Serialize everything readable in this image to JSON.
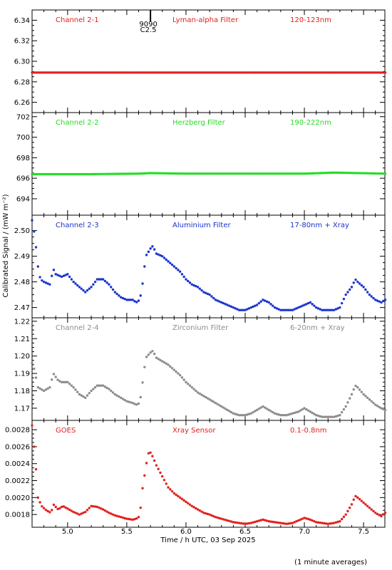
{
  "chart_data": {
    "type": "scatter",
    "title": "",
    "xlabel": "Time / h UTC, 03 Sep 2025",
    "ylabel": "Calibrated Signal / (mW m⁻²)",
    "footnote": "(1 minute averages)",
    "xlim": [
      4.7,
      7.68
    ],
    "x_ticks": [
      "5.0",
      "5.5",
      "6.0",
      "6.5",
      "7.0",
      "7.5"
    ],
    "x_tick_values": [
      5.0,
      5.5,
      6.0,
      6.5,
      7.0,
      7.5
    ],
    "event_marker": {
      "x": 5.7,
      "label_top": "9090",
      "label_bottom": "C2.5"
    },
    "panels": [
      {
        "name": "Channel 2-1",
        "filter": "Lyman-alpha Filter",
        "band": "120-123nm",
        "color": "#e0201e",
        "ylim": [
          6.25,
          6.35
        ],
        "y_ticks": [
          "6.26",
          "6.28",
          "6.30",
          "6.32",
          "6.34"
        ],
        "y_tick_values": [
          6.26,
          6.28,
          6.3,
          6.32,
          6.34
        ],
        "points": [
          [
            4.7,
            6.289
          ],
          [
            5.0,
            6.289
          ],
          [
            5.5,
            6.289
          ],
          [
            6.0,
            6.289
          ],
          [
            6.5,
            6.289
          ],
          [
            7.0,
            6.289
          ],
          [
            7.68,
            6.289
          ]
        ]
      },
      {
        "name": "Channel 2-2",
        "filter": "Herzberg Filter",
        "band": "190-222nm",
        "color": "#22dd22",
        "ylim": [
          692.4,
          702.4
        ],
        "y_ticks": [
          "694",
          "696",
          "698",
          "700",
          "702"
        ],
        "y_tick_values": [
          694,
          696,
          698,
          700,
          702
        ],
        "points": [
          [
            4.7,
            696.4
          ],
          [
            5.2,
            696.4
          ],
          [
            5.6,
            696.45
          ],
          [
            5.7,
            696.5
          ],
          [
            6.0,
            696.45
          ],
          [
            6.5,
            696.45
          ],
          [
            7.0,
            696.45
          ],
          [
            7.25,
            696.55
          ],
          [
            7.68,
            696.45
          ]
        ]
      },
      {
        "name": "Channel 2-3",
        "filter": "Aluminium Filter",
        "band": "17-80nm + Xray",
        "color": "#1a33cc",
        "ylim": [
          2.466,
          2.506
        ],
        "y_ticks": [
          "2.47",
          "2.48",
          "2.49",
          "2.50"
        ],
        "y_tick_values": [
          2.47,
          2.48,
          2.49,
          2.5
        ],
        "points": [
          [
            4.7,
            2.504
          ],
          [
            4.71,
            2.502
          ],
          [
            4.73,
            2.495
          ],
          [
            4.75,
            2.486
          ],
          [
            4.77,
            2.481
          ],
          [
            4.8,
            2.48
          ],
          [
            4.85,
            2.479
          ],
          [
            4.88,
            2.485
          ],
          [
            4.9,
            2.483
          ],
          [
            4.95,
            2.482
          ],
          [
            5.0,
            2.483
          ],
          [
            5.05,
            2.48
          ],
          [
            5.1,
            2.478
          ],
          [
            5.15,
            2.476
          ],
          [
            5.2,
            2.478
          ],
          [
            5.25,
            2.481
          ],
          [
            5.3,
            2.481
          ],
          [
            5.35,
            2.479
          ],
          [
            5.4,
            2.476
          ],
          [
            5.45,
            2.474
          ],
          [
            5.5,
            2.473
          ],
          [
            5.55,
            2.473
          ],
          [
            5.58,
            2.472
          ],
          [
            5.61,
            2.473
          ],
          [
            5.63,
            2.478
          ],
          [
            5.66,
            2.49
          ],
          [
            5.7,
            2.493
          ],
          [
            5.72,
            2.494
          ],
          [
            5.75,
            2.491
          ],
          [
            5.8,
            2.49
          ],
          [
            5.85,
            2.488
          ],
          [
            5.9,
            2.486
          ],
          [
            5.95,
            2.484
          ],
          [
            6.0,
            2.481
          ],
          [
            6.05,
            2.479
          ],
          [
            6.1,
            2.478
          ],
          [
            6.15,
            2.476
          ],
          [
            6.2,
            2.475
          ],
          [
            6.25,
            2.473
          ],
          [
            6.3,
            2.472
          ],
          [
            6.35,
            2.471
          ],
          [
            6.4,
            2.47
          ],
          [
            6.45,
            2.469
          ],
          [
            6.5,
            2.469
          ],
          [
            6.55,
            2.47
          ],
          [
            6.6,
            2.471
          ],
          [
            6.65,
            2.473
          ],
          [
            6.7,
            2.472
          ],
          [
            6.75,
            2.47
          ],
          [
            6.8,
            2.469
          ],
          [
            6.85,
            2.469
          ],
          [
            6.9,
            2.469
          ],
          [
            6.95,
            2.47
          ],
          [
            7.0,
            2.471
          ],
          [
            7.05,
            2.472
          ],
          [
            7.1,
            2.47
          ],
          [
            7.15,
            2.469
          ],
          [
            7.2,
            2.469
          ],
          [
            7.25,
            2.469
          ],
          [
            7.3,
            2.47
          ],
          [
            7.35,
            2.475
          ],
          [
            7.4,
            2.478
          ],
          [
            7.43,
            2.481
          ],
          [
            7.45,
            2.48
          ],
          [
            7.5,
            2.478
          ],
          [
            7.55,
            2.475
          ],
          [
            7.6,
            2.473
          ],
          [
            7.65,
            2.472
          ],
          [
            7.68,
            2.473
          ]
        ]
      },
      {
        "name": "Channel 2-4",
        "filter": "Zirconium Filter",
        "band": "6-20nm + Xray",
        "color": "#8c8c8c",
        "ylim": [
          1.163,
          1.222
        ],
        "y_ticks": [
          "1.17",
          "1.18",
          "1.19",
          "1.20",
          "1.21",
          "1.22"
        ],
        "y_tick_values": [
          1.17,
          1.18,
          1.19,
          1.2,
          1.21,
          1.22
        ],
        "points": [
          [
            4.7,
            1.196
          ],
          [
            4.72,
            1.192
          ],
          [
            4.75,
            1.182
          ],
          [
            4.8,
            1.18
          ],
          [
            4.85,
            1.182
          ],
          [
            4.88,
            1.19
          ],
          [
            4.92,
            1.186
          ],
          [
            4.95,
            1.185
          ],
          [
            5.0,
            1.185
          ],
          [
            5.05,
            1.182
          ],
          [
            5.1,
            1.178
          ],
          [
            5.15,
            1.176
          ],
          [
            5.2,
            1.18
          ],
          [
            5.25,
            1.183
          ],
          [
            5.3,
            1.183
          ],
          [
            5.35,
            1.181
          ],
          [
            5.4,
            1.178
          ],
          [
            5.45,
            1.176
          ],
          [
            5.5,
            1.174
          ],
          [
            5.55,
            1.173
          ],
          [
            5.58,
            1.172
          ],
          [
            5.61,
            1.173
          ],
          [
            5.63,
            1.183
          ],
          [
            5.66,
            1.199
          ],
          [
            5.7,
            1.202
          ],
          [
            5.72,
            1.203
          ],
          [
            5.75,
            1.199
          ],
          [
            5.8,
            1.197
          ],
          [
            5.85,
            1.195
          ],
          [
            5.9,
            1.192
          ],
          [
            5.95,
            1.189
          ],
          [
            6.0,
            1.185
          ],
          [
            6.05,
            1.182
          ],
          [
            6.1,
            1.179
          ],
          [
            6.15,
            1.177
          ],
          [
            6.2,
            1.175
          ],
          [
            6.25,
            1.173
          ],
          [
            6.3,
            1.171
          ],
          [
            6.35,
            1.169
          ],
          [
            6.4,
            1.167
          ],
          [
            6.45,
            1.166
          ],
          [
            6.5,
            1.166
          ],
          [
            6.55,
            1.167
          ],
          [
            6.6,
            1.169
          ],
          [
            6.65,
            1.171
          ],
          [
            6.7,
            1.169
          ],
          [
            6.75,
            1.167
          ],
          [
            6.8,
            1.166
          ],
          [
            6.85,
            1.166
          ],
          [
            6.9,
            1.167
          ],
          [
            6.95,
            1.168
          ],
          [
            7.0,
            1.17
          ],
          [
            7.05,
            1.168
          ],
          [
            7.1,
            1.166
          ],
          [
            7.15,
            1.165
          ],
          [
            7.2,
            1.165
          ],
          [
            7.25,
            1.165
          ],
          [
            7.3,
            1.166
          ],
          [
            7.35,
            1.171
          ],
          [
            7.4,
            1.178
          ],
          [
            7.43,
            1.183
          ],
          [
            7.45,
            1.182
          ],
          [
            7.5,
            1.178
          ],
          [
            7.55,
            1.175
          ],
          [
            7.6,
            1.172
          ],
          [
            7.65,
            1.17
          ],
          [
            7.68,
            1.169
          ]
        ]
      },
      {
        "name": "GOES",
        "filter": "Xray Sensor",
        "band": "0.1-0.8nm",
        "color": "#e0201e",
        "ylim": [
          0.00165,
          0.00291
        ],
        "y_ticks": [
          "0.0018",
          "0.0020",
          "0.0022",
          "0.0024",
          "0.0026",
          "0.0028"
        ],
        "y_tick_values": [
          0.0018,
          0.002,
          0.0022,
          0.0024,
          0.0026,
          0.0028
        ],
        "points": [
          [
            4.7,
            0.00285
          ],
          [
            4.71,
            0.0027
          ],
          [
            4.73,
            0.0024
          ],
          [
            4.75,
            0.002
          ],
          [
            4.78,
            0.0019
          ],
          [
            4.82,
            0.00185
          ],
          [
            4.86,
            0.00182
          ],
          [
            4.88,
            0.00192
          ],
          [
            4.92,
            0.00186
          ],
          [
            4.96,
            0.0019
          ],
          [
            5.0,
            0.00187
          ],
          [
            5.05,
            0.00183
          ],
          [
            5.1,
            0.0018
          ],
          [
            5.15,
            0.00183
          ],
          [
            5.2,
            0.0019
          ],
          [
            5.25,
            0.00189
          ],
          [
            5.3,
            0.00186
          ],
          [
            5.35,
            0.00182
          ],
          [
            5.4,
            0.00179
          ],
          [
            5.45,
            0.00177
          ],
          [
            5.5,
            0.00175
          ],
          [
            5.55,
            0.00174
          ],
          [
            5.58,
            0.00175
          ],
          [
            5.61,
            0.00178
          ],
          [
            5.63,
            0.00208
          ],
          [
            5.66,
            0.00235
          ],
          [
            5.68,
            0.00252
          ],
          [
            5.7,
            0.00253
          ],
          [
            5.72,
            0.00248
          ],
          [
            5.75,
            0.00238
          ],
          [
            5.8,
            0.00225
          ],
          [
            5.85,
            0.00212
          ],
          [
            5.9,
            0.00205
          ],
          [
            5.95,
            0.002
          ],
          [
            6.0,
            0.00195
          ],
          [
            6.05,
            0.0019
          ],
          [
            6.1,
            0.00186
          ],
          [
            6.15,
            0.00182
          ],
          [
            6.2,
            0.0018
          ],
          [
            6.25,
            0.00177
          ],
          [
            6.3,
            0.00175
          ],
          [
            6.35,
            0.00173
          ],
          [
            6.4,
            0.00171
          ],
          [
            6.45,
            0.0017
          ],
          [
            6.5,
            0.00169
          ],
          [
            6.55,
            0.0017
          ],
          [
            6.6,
            0.00172
          ],
          [
            6.65,
            0.00174
          ],
          [
            6.7,
            0.00172
          ],
          [
            6.75,
            0.00171
          ],
          [
            6.8,
            0.0017
          ],
          [
            6.85,
            0.00169
          ],
          [
            6.9,
            0.0017
          ],
          [
            6.95,
            0.00173
          ],
          [
            7.0,
            0.00176
          ],
          [
            7.05,
            0.00174
          ],
          [
            7.1,
            0.00171
          ],
          [
            7.15,
            0.0017
          ],
          [
            7.2,
            0.00169
          ],
          [
            7.25,
            0.0017
          ],
          [
            7.3,
            0.00172
          ],
          [
            7.35,
            0.0018
          ],
          [
            7.4,
            0.00192
          ],
          [
            7.43,
            0.00202
          ],
          [
            7.45,
            0.002
          ],
          [
            7.5,
            0.00194
          ],
          [
            7.55,
            0.00188
          ],
          [
            7.6,
            0.00182
          ],
          [
            7.65,
            0.00178
          ],
          [
            7.68,
            0.00182
          ]
        ]
      }
    ]
  }
}
